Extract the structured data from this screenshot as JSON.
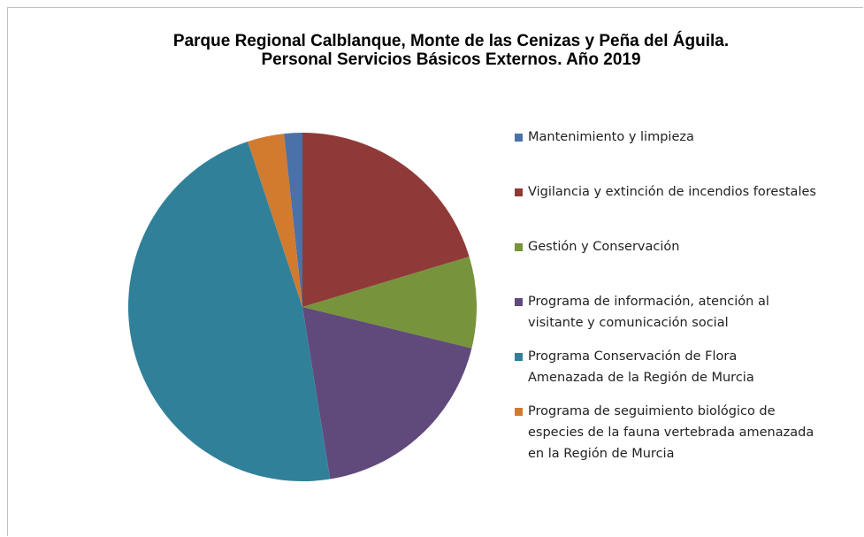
{
  "chart_data": {
    "type": "pie",
    "title": "Parque Regional Calblanque, Monte de las Cenizas y Peña del Águila.",
    "subtitle": "Personal Servicios Básicos Externos. Año 2019",
    "categories": [
      "Mantenimiento y limpieza",
      "Vigilancia y extinción de incendios forestales",
      "Gestión y Conservación",
      "Programa de información, atención al visitante y comunicación social",
      "Programa Conservación de Flora Amenazada de la Región de Murcia",
      "Programa de seguimiento biológico de especies de la fauna vertebrada amenazada en la Región de Murcia"
    ],
    "values": [
      1,
      12,
      5,
      11,
      28,
      2
    ],
    "colors": [
      "#4a72a8",
      "#8f3a38",
      "#77933c",
      "#5f4a7b",
      "#31809a",
      "#d27a2e"
    ],
    "legend": "right"
  }
}
